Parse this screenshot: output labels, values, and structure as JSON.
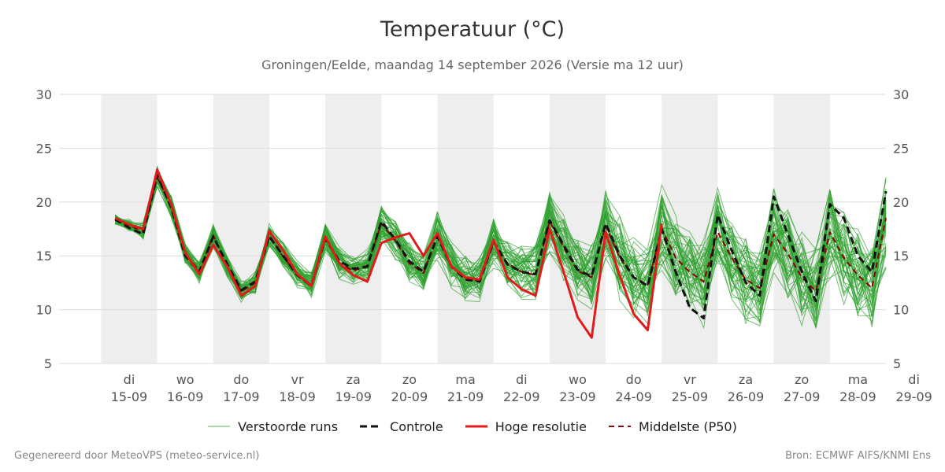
{
  "colors": {
    "members": "#2ca02c",
    "control": "#111111",
    "hres": "#e31a1c",
    "median": "#8b0000",
    "shade": "#eeeeee",
    "grid": "#dddddd"
  },
  "legend": {
    "members": "Verstoorde runs",
    "control": "Controle",
    "hres": "Hoge resolutie",
    "median": "Middelste (P50)"
  },
  "footer": {
    "left": "Gegenereerd door MeteoVPS (meteo-service.nl)",
    "right": "Bron: ECMWF AIFS/KNMI Ens"
  },
  "chart_data": {
    "type": "line",
    "title": "Temperatuur (°C)",
    "subtitle": "Groningen/Eelde, maandag 14 september 2026 (Versie ma 12 uur)",
    "ylim": [
      5,
      30
    ],
    "yticks": [
      5,
      10,
      15,
      20,
      25,
      30
    ],
    "y_axis_both_sides": true,
    "grid": true,
    "legend_position": "bottom",
    "x_unit": "days after 15-09 00:00",
    "xlim": [
      -1.25,
      13.5
    ],
    "days": [
      {
        "day": "di",
        "date": "15-09"
      },
      {
        "day": "wo",
        "date": "16-09"
      },
      {
        "day": "do",
        "date": "17-09"
      },
      {
        "day": "vr",
        "date": "18-09"
      },
      {
        "day": "za",
        "date": "19-09"
      },
      {
        "day": "zo",
        "date": "20-09"
      },
      {
        "day": "ma",
        "date": "21-09"
      },
      {
        "day": "di",
        "date": "22-09"
      },
      {
        "day": "wo",
        "date": "23-09"
      },
      {
        "day": "do",
        "date": "24-09"
      },
      {
        "day": "vr",
        "date": "25-09"
      },
      {
        "day": "za",
        "date": "26-09"
      },
      {
        "day": "zo",
        "date": "27-09"
      },
      {
        "day": "ma",
        "date": "28-09"
      },
      {
        "day": "di",
        "date": "29-09"
      }
    ],
    "x": [
      -0.25,
      0,
      0.25,
      0.5,
      0.75,
      1,
      1.25,
      1.5,
      1.75,
      2,
      2.25,
      2.5,
      2.75,
      3,
      3.25,
      3.5,
      3.75,
      4,
      4.25,
      4.5,
      4.75,
      5,
      5.25,
      5.5,
      5.75,
      6,
      6.25,
      6.5,
      6.75,
      7,
      7.25,
      7.5,
      7.75,
      8,
      8.25,
      8.5,
      8.75,
      9,
      9.25,
      9.5,
      9.75,
      10,
      10.25,
      10.5,
      10.75,
      11,
      11.25,
      11.5,
      11.75,
      12,
      12.25,
      12.5,
      12.75,
      13,
      13.25,
      13.5
    ],
    "series": [
      {
        "name": "Hoge resolutie",
        "style": "solid-red",
        "values": [
          18.5,
          17.9,
          17.5,
          23.0,
          19.8,
          15.3,
          13.3,
          16.0,
          14.0,
          11.3,
          12.2,
          17.3,
          15.5,
          13.3,
          12.2,
          16.8,
          14.3,
          13.2,
          12.6,
          16.2,
          16.7,
          17.1,
          15.0,
          17.1,
          14.0,
          13.0,
          12.8,
          16.5,
          13.0,
          11.9,
          11.3,
          17.5,
          13.5,
          9.3,
          7.4,
          17.2,
          13.2,
          9.6,
          8.1,
          18.0,
          null,
          null,
          null,
          null,
          null,
          null,
          null,
          null,
          null,
          null,
          null,
          null,
          null,
          null,
          null,
          null
        ]
      },
      {
        "name": "Controle",
        "style": "dashed-black",
        "values": [
          18.4,
          17.6,
          17.0,
          22.5,
          19.5,
          15.0,
          13.5,
          16.8,
          14.2,
          11.8,
          12.6,
          16.8,
          15.0,
          13.2,
          12.2,
          16.6,
          14.5,
          13.8,
          14.0,
          18.2,
          16.5,
          14.5,
          13.5,
          16.8,
          14.0,
          12.8,
          12.6,
          16.3,
          14.2,
          13.5,
          13.3,
          18.3,
          16.0,
          13.7,
          13.1,
          18.0,
          15.0,
          13.0,
          12.2,
          17.5,
          13.5,
          10.2,
          9.2,
          18.8,
          15.5,
          12.5,
          11.3,
          20.5,
          17.0,
          13.5,
          10.8,
          19.8,
          18.5,
          15.0,
          13.5,
          21.0
        ]
      },
      {
        "name": "Middelste (P50)",
        "style": "dashed-darkred",
        "values": [
          18.3,
          17.8,
          17.3,
          22.3,
          19.6,
          15.2,
          13.6,
          16.9,
          14.0,
          11.7,
          12.5,
          16.9,
          14.9,
          13.3,
          12.3,
          16.8,
          14.3,
          13.6,
          14.1,
          18.0,
          16.4,
          14.3,
          13.4,
          16.9,
          14.1,
          12.8,
          12.7,
          16.3,
          14.3,
          13.5,
          13.2,
          18.2,
          15.8,
          13.6,
          13.0,
          17.8,
          14.8,
          13.0,
          12.3,
          17.5,
          14.8,
          13.5,
          12.6,
          17.2,
          14.8,
          12.8,
          12.0,
          17.0,
          15.2,
          13.0,
          11.7,
          17.2,
          14.8,
          13.2,
          12.0,
          18.5
        ]
      }
    ],
    "ensemble_members": {
      "name": "Verstoorde runs",
      "count": 50,
      "center": [
        18.4,
        17.8,
        17.3,
        22.4,
        19.6,
        15.2,
        13.5,
        16.8,
        14.1,
        11.7,
        12.5,
        16.9,
        15.0,
        13.3,
        12.3,
        16.8,
        14.4,
        13.7,
        14.1,
        18.0,
        16.4,
        14.3,
        13.4,
        16.9,
        14.1,
        12.8,
        12.7,
        16.4,
        14.3,
        13.5,
        13.3,
        18.2,
        15.7,
        13.6,
        13.0,
        17.9,
        14.8,
        13.0,
        12.3,
        17.6,
        14.8,
        13.4,
        12.6,
        17.3,
        14.8,
        12.8,
        12.0,
        17.2,
        15.2,
        13.0,
        11.7,
        17.3,
        14.9,
        13.2,
        12.0,
        18.3
      ],
      "spread": [
        0.4,
        0.5,
        0.6,
        0.8,
        0.8,
        0.8,
        0.8,
        0.9,
        0.8,
        0.8,
        0.9,
        1.0,
        1.0,
        1.0,
        1.0,
        1.2,
        1.2,
        1.2,
        1.3,
        1.4,
        1.5,
        1.6,
        1.6,
        1.8,
        1.8,
        1.8,
        1.8,
        2.0,
        2.0,
        2.0,
        2.2,
        2.5,
        2.5,
        2.6,
        2.8,
        3.0,
        3.0,
        3.0,
        3.0,
        3.2,
        3.2,
        3.2,
        3.2,
        3.3,
        3.3,
        3.2,
        3.2,
        3.4,
        3.4,
        3.4,
        3.3,
        3.5,
        3.5,
        3.5,
        3.5,
        3.8
      ]
    }
  }
}
